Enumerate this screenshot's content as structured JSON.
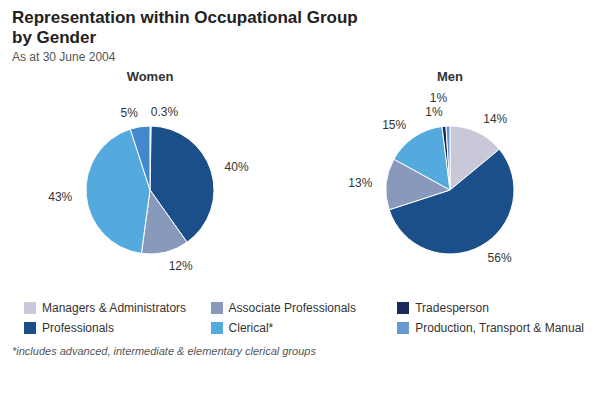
{
  "title": "Representation within Occupational Group\nby Gender",
  "subtitle": "As at 30 June 2004",
  "footnote": "*includes advanced, intermediate & elementary clerical groups",
  "legend": "bottom",
  "chart_data": [
    {
      "type": "pie",
      "title": "Women",
      "categories": [
        "Managers & Administrators",
        "Professionals",
        "Associate Professionals",
        "Clerical*",
        "Production, Transport & Manual"
      ],
      "values": [
        0.3,
        40,
        12,
        43,
        5
      ],
      "value_labels": [
        "0.3%",
        "40%",
        "12%",
        "43%",
        "5%"
      ],
      "colors": [
        "#c8c8d8",
        "#1a4f8a",
        "#8899bb",
        "#55aadd",
        "#4488cc"
      ],
      "data_labels": true
    },
    {
      "type": "pie",
      "title": "Men",
      "categories": [
        "Managers & Administrators",
        "Professionals",
        "Associate Professionals",
        "Clerical*",
        "Tradesperson",
        "Production, Transport & Manual"
      ],
      "values": [
        14,
        56,
        13,
        15,
        1,
        1
      ],
      "value_labels": [
        "14%",
        "56%",
        "13%",
        "15%",
        "1%",
        "1%"
      ],
      "colors": [
        "#c8c8d8",
        "#1a4f8a",
        "#8899bb",
        "#55aadd",
        "#1a2a5a",
        "#6699cc"
      ],
      "data_labels": true
    }
  ]
}
